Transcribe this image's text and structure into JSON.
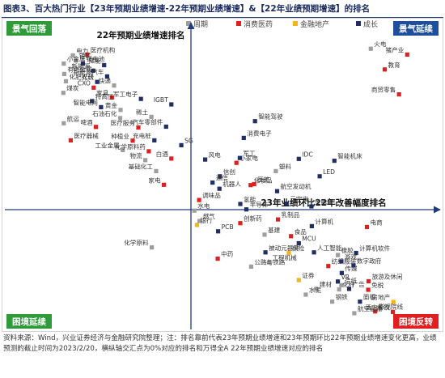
{
  "figure_title": "图表3、百大热门行业【23年预期业绩增速-22年预期业绩增速】&【22年业绩预期增速】的排名",
  "source_note": "资料来源：Wind，兴业证券经济与金融研究院整理；注：排名靠前代表23年预期业绩增速和23年预期环比22年预期业绩增速变化更高，业绩预测的截止时间为2023/2/20，横纵轴交汇点为0%对应的排名和万得全A 22年预期业绩增速对应的排名",
  "colors": {
    "周期": "#9e9e9e",
    "消费医药": "#e02020",
    "金融地产": "#f2b619",
    "成长": "#1f2f66",
    "quadrant_blue": "#1f4e9c",
    "quadrant_green": "#2f9a3a",
    "quadrant_red": "#e02020"
  },
  "quadrants": {
    "top_left": "景气回落",
    "top_right": "景气延续",
    "bottom_left": "困境延续",
    "bottom_right": "困境反转"
  },
  "chart_data": {
    "type": "scatter",
    "xlabel": "23年业绩环比22年改善幅度排名",
    "ylabel": "22年预期业绩增速排名",
    "legend": [
      "周期",
      "消费医药",
      "金融地产",
      "成长"
    ],
    "legend_placement": "top-center",
    "xlim": [
      0,
      100
    ],
    "ylim": [
      0,
      100
    ],
    "points": [
      {
        "label": "电力",
        "x": 15.5,
        "y": 89.5,
        "cat": "周期"
      },
      {
        "label": "锂矿",
        "x": 16.2,
        "y": 87.8,
        "cat": "周期"
      },
      {
        "label": "医疗机构",
        "x": 18.8,
        "y": 89.8,
        "cat": "消费医药"
      },
      {
        "label": "小金属",
        "x": 13.4,
        "y": 86.8,
        "cat": "周期"
      },
      {
        "label": "锂电池",
        "x": 17.8,
        "y": 86.8,
        "cat": "成长"
      },
      {
        "label": "储能",
        "x": 22.7,
        "y": 86.3,
        "cat": "成长"
      },
      {
        "label": "新能源",
        "x": 20.2,
        "y": 84.5,
        "cat": "成长"
      },
      {
        "label": "有色金属",
        "x": 13.5,
        "y": 83.4,
        "cat": "周期"
      },
      {
        "label": "新能源汽车",
        "x": 23.4,
        "y": 82.6,
        "cat": "成长"
      },
      {
        "label": "化肥农药",
        "x": 13.9,
        "y": 81.0,
        "cat": "周期"
      },
      {
        "label": "光伏",
        "x": 21.1,
        "y": 80.8,
        "cat": "成长"
      },
      {
        "label": "快递",
        "x": 25.0,
        "y": 79.6,
        "cat": "周期"
      },
      {
        "label": "CXO",
        "x": 20.3,
        "y": 78.9,
        "cat": "消费医药"
      },
      {
        "label": "煤炭",
        "x": 13.3,
        "y": 77.2,
        "cat": "周期"
      },
      {
        "label": "家具",
        "x": 24.5,
        "y": 75.7,
        "cat": "消费医药"
      },
      {
        "label": "军工电子",
        "x": 31.2,
        "y": 75.2,
        "cat": "成长"
      },
      {
        "label": "特高压",
        "x": 19.9,
        "y": 74.5,
        "cat": "成长"
      },
      {
        "label": "智能电网",
        "x": 22.0,
        "y": 72.5,
        "cat": "成长"
      },
      {
        "label": "IGBT",
        "x": 38.2,
        "y": 73.4,
        "cat": "成长"
      },
      {
        "label": "黄金",
        "x": 26.5,
        "y": 71.6,
        "cat": "周期"
      },
      {
        "label": "石油石化",
        "x": 26.4,
        "y": 68.9,
        "cat": "周期"
      },
      {
        "label": "稀土",
        "x": 33.6,
        "y": 69.3,
        "cat": "周期"
      },
      {
        "label": "航运",
        "x": 13.4,
        "y": 67.2,
        "cat": "周期"
      },
      {
        "label": "啤酒",
        "x": 20.8,
        "y": 66.0,
        "cat": "消费医药"
      },
      {
        "label": "医疗服务",
        "x": 30.6,
        "y": 65.8,
        "cat": "消费医药"
      },
      {
        "label": "汽车零部件",
        "x": 37.0,
        "y": 66.1,
        "cat": "成长"
      },
      {
        "label": "医疗器械",
        "x": 15.0,
        "y": 61.6,
        "cat": "消费医药"
      },
      {
        "label": "种植业",
        "x": 29.3,
        "y": 61.5,
        "cat": "消费医药"
      },
      {
        "label": "充电桩",
        "x": 34.3,
        "y": 61.6,
        "cat": "成长"
      },
      {
        "label": "SG",
        "x": 40.5,
        "y": 60.0,
        "cat": "成长"
      },
      {
        "label": "工业金属",
        "x": 27.0,
        "y": 58.4,
        "cat": "周期"
      },
      {
        "label": "化学原料药",
        "x": 33.0,
        "y": 58.0,
        "cat": "消费医药"
      },
      {
        "label": "物流",
        "x": 32.2,
        "y": 55.1,
        "cat": "周期"
      },
      {
        "label": "白酒",
        "x": 38.2,
        "y": 55.6,
        "cat": "消费医药"
      },
      {
        "label": "基础化工",
        "x": 34.7,
        "y": 51.5,
        "cat": "周期"
      },
      {
        "label": "家电",
        "x": 36.5,
        "y": 47.0,
        "cat": "消费医药"
      },
      {
        "label": "智能驾驶",
        "x": 57.5,
        "y": 67.9,
        "cat": "成长"
      },
      {
        "label": "消费电子",
        "x": 54.9,
        "y": 62.4,
        "cat": "成长"
      },
      {
        "label": "军工",
        "x": 54.0,
        "y": 55.8,
        "cat": "成长"
      },
      {
        "label": "风电",
        "x": 46.0,
        "y": 55.3,
        "cat": "成长"
      },
      {
        "label": "小家电",
        "x": 53.2,
        "y": 54.2,
        "cat": "消费医药"
      },
      {
        "label": "IDC",
        "x": 67.6,
        "y": 55.5,
        "cat": "成长"
      },
      {
        "label": "智能机床",
        "x": 75.8,
        "y": 54.9,
        "cat": "成长"
      },
      {
        "label": "塑料",
        "x": 62.3,
        "y": 51.5,
        "cat": "周期"
      },
      {
        "label": "LED",
        "x": 72.4,
        "y": 49.8,
        "cat": "成长"
      },
      {
        "label": "通信",
        "x": 47.7,
        "y": 47.7,
        "cat": "成长"
      },
      {
        "label": "信创",
        "x": 49.4,
        "y": 49.8,
        "cat": "成长"
      },
      {
        "label": "机器人",
        "x": 49.3,
        "y": 45.7,
        "cat": "成长"
      },
      {
        "label": "医美",
        "x": 57.3,
        "y": 47.2,
        "cat": "消费医药"
      },
      {
        "label": "化妆品",
        "x": 56.5,
        "y": 46.9,
        "cat": "消费医药"
      },
      {
        "label": "航空发动机",
        "x": 62.6,
        "y": 44.9,
        "cat": "成长"
      },
      {
        "label": "调味品",
        "x": 44.6,
        "y": 42.0,
        "cat": "消费医药"
      },
      {
        "label": "氢能",
        "x": 54.1,
        "y": 40.7,
        "cat": "成长"
      },
      {
        "label": "半导体",
        "x": 55.5,
        "y": 38.9,
        "cat": "成长"
      },
      {
        "label": "元宇宙",
        "x": 64.8,
        "y": 40.8,
        "cat": "成长"
      },
      {
        "label": "金融IT",
        "x": 70.5,
        "y": 39.9,
        "cat": "成长"
      },
      {
        "label": "水电",
        "x": 43.5,
        "y": 38.5,
        "cat": "周期"
      },
      {
        "label": "燃气",
        "x": 44.7,
        "y": 35.1,
        "cat": "周期"
      },
      {
        "label": "创新药",
        "x": 54.1,
        "y": 34.4,
        "cat": "消费医药"
      },
      {
        "label": "乳制品",
        "x": 62.8,
        "y": 35.6,
        "cat": "消费医药"
      },
      {
        "label": "银行",
        "x": 44.1,
        "y": 33.8,
        "cat": "金融地产"
      },
      {
        "label": "PCB",
        "x": 49.0,
        "y": 31.7,
        "cat": "成长"
      },
      {
        "label": "计算机",
        "x": 70.6,
        "y": 33.4,
        "cat": "成长"
      },
      {
        "label": "电商",
        "x": 83.3,
        "y": 33.1,
        "cat": "消费医药"
      },
      {
        "label": "基建",
        "x": 59.7,
        "y": 30.6,
        "cat": "周期"
      },
      {
        "label": "食品",
        "x": 65.8,
        "y": 30.1,
        "cat": "消费医药"
      },
      {
        "label": "MCU",
        "x": 67.6,
        "y": 27.8,
        "cat": "成长"
      },
      {
        "label": "被动元器件",
        "x": 59.9,
        "y": 24.8,
        "cat": "成长"
      },
      {
        "label": "保险",
        "x": 65.3,
        "y": 24.6,
        "cat": "金融地产"
      },
      {
        "label": "人工智能",
        "x": 71.1,
        "y": 24.8,
        "cat": "成长"
      },
      {
        "label": "橡胶",
        "x": 76.6,
        "y": 23.9,
        "cat": "周期"
      },
      {
        "label": "计算机软件",
        "x": 80.8,
        "y": 24.6,
        "cat": "成长"
      },
      {
        "label": "化学原料",
        "x": 33.7,
        "y": 26.4,
        "cat": "周期"
      },
      {
        "label": "中药",
        "x": 48.9,
        "y": 22.7,
        "cat": "消费医药"
      },
      {
        "label": "工程机械",
        "x": 60.7,
        "y": 21.5,
        "cat": "周期"
      },
      {
        "label": "游戏",
        "x": 77.4,
        "y": 21.8,
        "cat": "成长"
      },
      {
        "label": "纺织服装",
        "x": 74.4,
        "y": 20.3,
        "cat": "消费医药"
      },
      {
        "label": "数字政府",
        "x": 80.2,
        "y": 20.5,
        "cat": "成长"
      },
      {
        "label": "公路与铁路",
        "x": 56.6,
        "y": 20.1,
        "cat": "周期"
      },
      {
        "label": "传媒",
        "x": 77.5,
        "y": 18.0,
        "cat": "成长"
      },
      {
        "label": "证券",
        "x": 67.6,
        "y": 15.7,
        "cat": "金融地产"
      },
      {
        "label": "VR",
        "x": 76.6,
        "y": 15.2,
        "cat": "成长"
      },
      {
        "label": "旅游及休闲",
        "x": 83.7,
        "y": 15.3,
        "cat": "消费医药"
      },
      {
        "label": "造纸",
        "x": 77.4,
        "y": 14.0,
        "cat": "周期"
      },
      {
        "label": "建材",
        "x": 71.6,
        "y": 12.8,
        "cat": "周期"
      },
      {
        "label": "化纤",
        "x": 76.9,
        "y": 12.6,
        "cat": "周期"
      },
      {
        "label": "广告",
        "x": 79.2,
        "y": 12.8,
        "cat": "成长"
      },
      {
        "label": "免税",
        "x": 83.6,
        "y": 12.5,
        "cat": "消费医药"
      },
      {
        "label": "水泥",
        "x": 69.2,
        "y": 10.9,
        "cat": "周期"
      },
      {
        "label": "钢铁",
        "x": 75.3,
        "y": 8.6,
        "cat": "周期"
      },
      {
        "label": "面板",
        "x": 81.7,
        "y": 8.6,
        "cat": "成长"
      },
      {
        "label": "房地产",
        "x": 89.4,
        "y": 8.5,
        "cat": "金融地产"
      },
      {
        "label": "航空运输",
        "x": 80.4,
        "y": 4.8,
        "cat": "周期"
      },
      {
        "label": "影视院线",
        "x": 85.2,
        "y": 5.4,
        "cat": "消费医药"
      },
      {
        "label": "酒店餐饮",
        "x": 89.3,
        "y": 5.2,
        "cat": "消费医药"
      },
      {
        "label": "火电",
        "x": 84.2,
        "y": 91.7,
        "cat": "周期"
      },
      {
        "label": "猪产业",
        "x": 92.6,
        "y": 89.8,
        "cat": "消费医药"
      },
      {
        "label": "教育",
        "x": 87.4,
        "y": 84.9,
        "cat": "消费医药"
      },
      {
        "label": "商贸零售",
        "x": 90.7,
        "y": 76.7,
        "cat": "消费医药"
      }
    ]
  }
}
